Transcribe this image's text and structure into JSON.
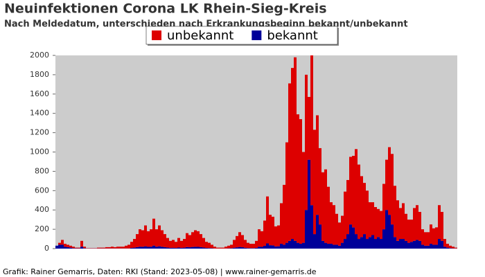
{
  "chart_data": {
    "type": "stacked_bar",
    "title": "Neuinfektionen Corona LK Rhein-Sieg-Kreis",
    "subtitle": "Nach Meldedatum, unterschieden nach Erkrankungsbeginn bekannt/unbekannt",
    "footer": "Grafik: Rainer Gemarris, Daten: RKI (Stand: 2023-05-08) | www.rainer-gemarris.de",
    "categories": [
      null,
      null,
      null,
      null,
      null,
      null,
      null,
      null,
      null,
      null,
      null,
      null,
      null,
      null,
      null,
      null,
      null,
      null,
      null,
      null,
      null,
      null,
      null,
      null,
      null,
      null,
      null,
      null,
      null,
      null,
      null,
      null,
      null,
      null,
      null,
      null,
      null,
      null,
      null,
      null,
      null,
      null,
      null,
      null,
      null,
      null,
      null,
      null,
      null,
      null,
      null,
      null,
      null,
      null,
      null,
      null,
      null,
      null,
      null,
      null,
      null,
      null,
      null,
      null,
      null,
      null,
      null,
      null,
      null,
      null,
      null,
      null,
      null,
      null,
      null,
      null,
      null,
      null,
      null,
      null,
      null,
      null,
      null,
      null,
      null,
      null,
      null,
      null,
      null,
      null,
      null,
      null,
      null,
      null,
      null,
      null,
      null,
      null,
      null,
      null,
      null,
      null,
      null,
      null,
      null,
      null,
      null,
      null,
      null,
      null,
      null,
      null,
      null,
      null,
      null,
      null,
      null,
      null,
      null,
      null,
      null,
      null,
      null,
      null,
      null,
      null,
      null,
      null,
      null,
      null,
      null,
      null,
      null,
      null,
      null,
      null,
      null,
      null,
      null,
      null,
      null,
      null,
      null,
      null,
      null
    ],
    "series": [
      {
        "name": "unbekannt",
        "color": "#dd0000",
        "values": [
          0,
          20,
          50,
          30,
          25,
          20,
          15,
          7,
          7,
          60,
          15,
          3,
          3,
          3,
          3,
          8,
          8,
          8,
          13,
          13,
          18,
          13,
          18,
          18,
          18,
          28,
          38,
          63,
          90,
          135,
          180,
          171,
          216,
          162,
          180,
          279,
          180,
          216,
          171,
          135,
          99,
          72,
          81,
          63,
          99,
          72,
          90,
          144,
          126,
          153,
          171,
          162,
          135,
          99,
          63,
          54,
          36,
          18,
          9,
          9,
          9,
          18,
          27,
          36,
          81,
          117,
          153,
          126,
          81,
          54,
          45,
          45,
          72,
          180,
          162,
          261,
          486,
          315,
          297,
          207,
          216,
          420,
          620,
          1040,
          1630,
          1770,
          1900,
          1330,
          1290,
          940,
          1400,
          650,
          1550,
          1080,
          1030,
          790,
          710,
          760,
          590,
          430,
          410,
          320,
          240,
          280,
          490,
          560,
          700,
          740,
          880,
          770,
          630,
          530,
          500,
          360,
          340,
          330,
          290,
          290,
          470,
          520,
          700,
          730,
          530,
          420,
          320,
          370,
          280,
          240,
          230,
          340,
          360,
          300,
          160,
          140,
          140,
          200,
          170,
          180,
          350,
          300,
          80,
          40,
          25,
          17,
          8
        ]
      },
      {
        "name": "bekannt",
        "color": "#000099",
        "values": [
          30,
          40,
          40,
          20,
          15,
          10,
          5,
          3,
          3,
          20,
          5,
          2,
          2,
          2,
          2,
          2,
          2,
          2,
          2,
          2,
          2,
          2,
          2,
          2,
          2,
          2,
          2,
          7,
          10,
          15,
          20,
          19,
          24,
          18,
          20,
          31,
          20,
          24,
          19,
          15,
          11,
          8,
          9,
          7,
          11,
          8,
          10,
          16,
          14,
          17,
          19,
          18,
          15,
          11,
          7,
          6,
          4,
          2,
          1,
          1,
          1,
          2,
          3,
          4,
          9,
          13,
          17,
          14,
          9,
          6,
          5,
          5,
          8,
          20,
          18,
          29,
          54,
          35,
          33,
          23,
          24,
          50,
          40,
          60,
          80,
          100,
          80,
          60,
          50,
          60,
          400,
          920,
          450,
          150,
          350,
          250,
          80,
          60,
          50,
          50,
          40,
          40,
          30,
          60,
          100,
          150,
          250,
          220,
          150,
          100,
          120,
          150,
          100,
          120,
          140,
          100,
          120,
          100,
          200,
          400,
          350,
          250,
          120,
          80,
          100,
          100,
          80,
          60,
          70,
          80,
          90,
          80,
          40,
          30,
          30,
          50,
          40,
          40,
          100,
          80,
          20,
          10,
          5,
          3,
          2
        ]
      }
    ],
    "ylim": [
      0,
      2000
    ],
    "yticks": [
      0,
      200,
      400,
      600,
      800,
      1000,
      1200,
      1400,
      1600,
      1800,
      2000
    ],
    "grid": false,
    "legend": "top"
  }
}
